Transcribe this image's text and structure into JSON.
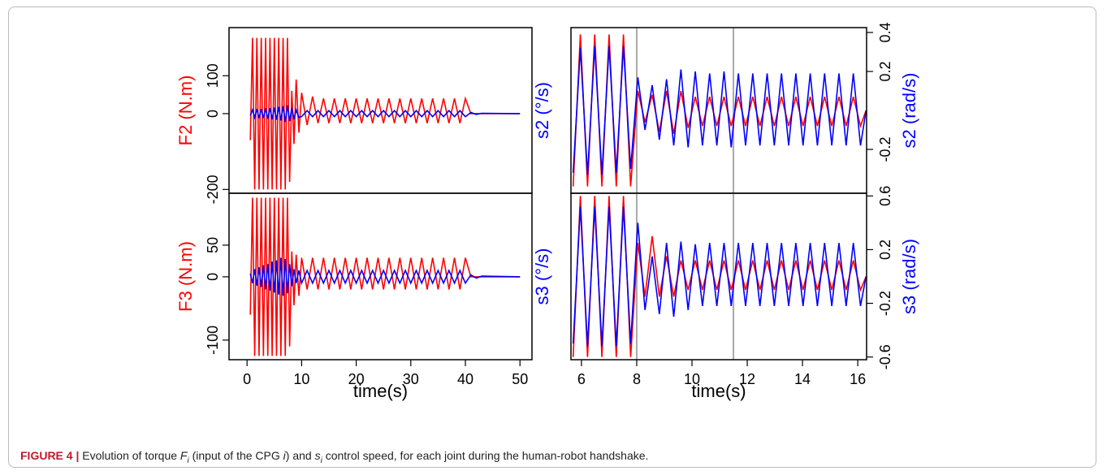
{
  "chart_data": [
    {
      "type": "line",
      "ylabel": "F2 (N.m)",
      "ylabel_color": "#ff0000",
      "xlim": [
        -3.3,
        52.2
      ],
      "ylim": [
        -210,
        227
      ],
      "yticks": [
        -200,
        0,
        100
      ],
      "x": [
        0.6,
        1.0,
        1.4,
        1.8,
        2.2,
        2.6,
        3.0,
        3.4,
        3.8,
        4.2,
        4.6,
        5.0,
        5.4,
        5.8,
        6.2,
        6.6,
        7.0,
        7.4,
        7.8,
        8.2,
        8.6,
        9.0,
        9.5,
        10,
        11,
        12,
        13,
        14,
        15,
        16,
        17,
        18,
        19,
        20,
        21,
        22,
        23,
        24,
        25,
        26,
        27,
        28,
        29,
        30,
        31,
        32,
        33,
        34,
        35,
        36,
        37,
        38,
        39,
        40,
        41,
        42,
        43,
        50
      ],
      "series": [
        {
          "color": "#ff0000",
          "values": [
            -70,
            200,
            -200,
            200,
            -200,
            200,
            -200,
            200,
            -200,
            200,
            -200,
            200,
            -200,
            200,
            -200,
            200,
            -200,
            200,
            -180,
            60,
            -80,
            90,
            -50,
            55,
            -30,
            45,
            -25,
            40,
            -25,
            40,
            -25,
            40,
            -25,
            40,
            -25,
            40,
            -25,
            40,
            -25,
            40,
            -25,
            40,
            -25,
            40,
            -25,
            40,
            -25,
            40,
            -25,
            40,
            -25,
            40,
            -25,
            40,
            0,
            0,
            0,
            0
          ]
        },
        {
          "color": "#0000ff",
          "values": [
            -5,
            10,
            -10,
            12,
            -12,
            12,
            -12,
            14,
            -14,
            15,
            -15,
            16,
            -16,
            18,
            -18,
            20,
            -22,
            22,
            -20,
            15,
            -15,
            10,
            -10,
            -8,
            8,
            -8,
            8,
            -8,
            8,
            -8,
            8,
            -8,
            8,
            -8,
            8,
            -8,
            8,
            -8,
            8,
            -8,
            8,
            -8,
            8,
            -8,
            8,
            -8,
            8,
            -8,
            8,
            -8,
            8,
            -8,
            8,
            -8,
            3,
            -2,
            1,
            0
          ]
        }
      ]
    },
    {
      "type": "line",
      "ylabel": "s2 (°/s)",
      "y2label": "s2 (rad/s)",
      "ylabel_color": "#0000ff",
      "xlim": [
        5.62,
        16.32
      ],
      "y2lim": [
        -0.425,
        0.425
      ],
      "y2ticks": [
        -0.2,
        0.2,
        0.4
      ],
      "vlines": [
        8,
        11.5
      ],
      "vline_color": "#aaaaaa",
      "x": [
        5.7,
        5.96,
        6.22,
        6.48,
        6.74,
        7.0,
        7.26,
        7.52,
        7.78,
        8.04,
        8.3,
        8.56,
        8.82,
        9.08,
        9.34,
        9.6,
        9.86,
        10.12,
        10.38,
        10.64,
        10.9,
        11.16,
        11.42,
        11.68,
        11.94,
        12.2,
        12.46,
        12.72,
        12.98,
        13.24,
        13.5,
        13.76,
        14.02,
        14.28,
        14.54,
        14.8,
        15.06,
        15.32,
        15.58,
        15.84,
        16.1,
        16.3
      ],
      "series": [
        {
          "color": "#ff0000",
          "axis": "y2",
          "values": [
            -0.39,
            0.39,
            -0.39,
            0.39,
            -0.39,
            0.39,
            -0.39,
            0.39,
            -0.39,
            0.1,
            -0.06,
            0.08,
            -0.11,
            0.1,
            -0.12,
            0.1,
            -0.09,
            0.07,
            -0.08,
            0.07,
            -0.08,
            0.07,
            -0.08,
            0.07,
            -0.08,
            0.07,
            -0.08,
            0.07,
            -0.08,
            0.07,
            -0.08,
            0.07,
            -0.08,
            0.07,
            -0.08,
            0.07,
            -0.08,
            0.07,
            -0.08,
            0.07,
            -0.08,
            0.0
          ]
        },
        {
          "color": "#0000ff",
          "axis": "y2",
          "values": [
            -0.32,
            0.32,
            -0.33,
            0.33,
            -0.33,
            0.33,
            -0.32,
            0.33,
            -0.3,
            0.17,
            -0.1,
            0.13,
            -0.15,
            0.16,
            -0.18,
            0.21,
            -0.19,
            0.2,
            -0.18,
            0.19,
            -0.18,
            0.2,
            -0.19,
            0.19,
            -0.18,
            0.19,
            -0.18,
            0.19,
            -0.18,
            0.19,
            -0.18,
            0.19,
            -0.18,
            0.19,
            -0.18,
            0.19,
            -0.18,
            0.19,
            -0.18,
            0.19,
            -0.18,
            0.0
          ]
        }
      ]
    },
    {
      "type": "line",
      "ylabel": "F3 (N.m)",
      "ylabel_color": "#ff0000",
      "xlabel": "time(s)",
      "xlim": [
        -3.3,
        52.2
      ],
      "xticks": [
        0,
        10,
        20,
        30,
        40,
        50
      ],
      "ylim": [
        -131,
        132
      ],
      "yticks": [
        -100,
        0,
        50
      ],
      "x": [
        0.6,
        1.0,
        1.4,
        1.8,
        2.2,
        2.6,
        3.0,
        3.4,
        3.8,
        4.2,
        4.6,
        5.0,
        5.4,
        5.8,
        6.2,
        6.6,
        7.0,
        7.4,
        7.8,
        8.2,
        8.6,
        9.0,
        9.5,
        10,
        11,
        12,
        13,
        14,
        15,
        16,
        17,
        18,
        19,
        20,
        21,
        22,
        23,
        24,
        25,
        26,
        27,
        28,
        29,
        30,
        31,
        32,
        33,
        34,
        35,
        36,
        37,
        38,
        39,
        40,
        41,
        42,
        43,
        50
      ],
      "series": [
        {
          "color": "#ff0000",
          "values": [
            -60,
            125,
            -125,
            125,
            -125,
            125,
            -125,
            125,
            -125,
            125,
            -125,
            125,
            -125,
            125,
            -125,
            125,
            -125,
            125,
            -110,
            40,
            -45,
            35,
            -30,
            30,
            -20,
            30,
            -20,
            30,
            -20,
            30,
            -20,
            30,
            -20,
            30,
            -20,
            30,
            -20,
            30,
            -20,
            30,
            -20,
            30,
            -20,
            30,
            -20,
            30,
            -20,
            30,
            -20,
            30,
            -20,
            30,
            -20,
            30,
            0,
            0,
            0,
            0
          ]
        },
        {
          "color": "#0000ff",
          "values": [
            5,
            -10,
            12,
            -14,
            15,
            -16,
            18,
            -20,
            20,
            -22,
            24,
            -25,
            26,
            -28,
            30,
            -30,
            28,
            -26,
            20,
            -15,
            12,
            -10,
            10,
            -10,
            10,
            -10,
            10,
            -10,
            10,
            -10,
            10,
            -10,
            10,
            -10,
            10,
            -10,
            10,
            -10,
            10,
            -10,
            10,
            -10,
            10,
            -10,
            10,
            -10,
            10,
            -10,
            10,
            -10,
            10,
            -10,
            10,
            -10,
            3,
            -2,
            1,
            0
          ]
        }
      ]
    },
    {
      "type": "line",
      "ylabel": "s3 (°/s)",
      "y2label": "s3 (rad/s)",
      "ylabel_color": "#0000ff",
      "xlabel": "time(s)",
      "xlim": [
        5.62,
        16.32
      ],
      "xticks": [
        6,
        8,
        10,
        12,
        14,
        16
      ],
      "y2lim": [
        -0.62,
        0.62
      ],
      "y2ticks": [
        -0.6,
        -0.2,
        0.2,
        0.6
      ],
      "vlines": [
        8,
        11.5
      ],
      "vline_color": "#aaaaaa",
      "x": [
        5.7,
        5.96,
        6.22,
        6.48,
        6.74,
        7.0,
        7.26,
        7.52,
        7.78,
        8.04,
        8.3,
        8.56,
        8.82,
        9.08,
        9.34,
        9.6,
        9.86,
        10.12,
        10.38,
        10.64,
        10.9,
        11.16,
        11.42,
        11.68,
        11.94,
        12.2,
        12.46,
        12.72,
        12.98,
        13.24,
        13.5,
        13.76,
        14.02,
        14.28,
        14.54,
        14.8,
        15.06,
        15.32,
        15.58,
        15.84,
        16.1,
        16.3
      ],
      "series": [
        {
          "color": "#ff0000",
          "axis": "y2",
          "values": [
            -0.6,
            0.6,
            -0.6,
            0.6,
            -0.6,
            0.6,
            -0.6,
            0.6,
            -0.6,
            0.25,
            -0.15,
            0.3,
            -0.15,
            0.15,
            -0.15,
            0.12,
            -0.1,
            0.12,
            -0.1,
            0.12,
            -0.1,
            0.12,
            -0.1,
            0.12,
            -0.1,
            0.12,
            -0.1,
            0.12,
            -0.1,
            0.12,
            -0.1,
            0.12,
            -0.1,
            0.12,
            -0.1,
            0.12,
            -0.1,
            0.12,
            -0.1,
            0.12,
            -0.1,
            0.0
          ]
        },
        {
          "color": "#0000ff",
          "axis": "y2",
          "values": [
            -0.5,
            0.52,
            -0.52,
            0.52,
            -0.52,
            0.52,
            -0.52,
            0.52,
            -0.5,
            0.4,
            -0.25,
            0.15,
            -0.28,
            0.25,
            -0.3,
            0.26,
            -0.25,
            0.24,
            -0.22,
            0.25,
            -0.22,
            0.25,
            -0.22,
            0.25,
            -0.22,
            0.25,
            -0.22,
            0.25,
            -0.22,
            0.25,
            -0.22,
            0.25,
            -0.22,
            0.25,
            -0.22,
            0.25,
            -0.22,
            0.25,
            -0.22,
            0.25,
            -0.22,
            0.0
          ]
        }
      ]
    }
  ],
  "caption": {
    "label": "FIGURE 4 |",
    "parts": [
      "Evolution of torque ",
      "F",
      "i",
      " (input of the CPG ",
      "i",
      ") and ",
      "s",
      "i",
      " control speed, for each joint during the human-robot handshake."
    ]
  }
}
